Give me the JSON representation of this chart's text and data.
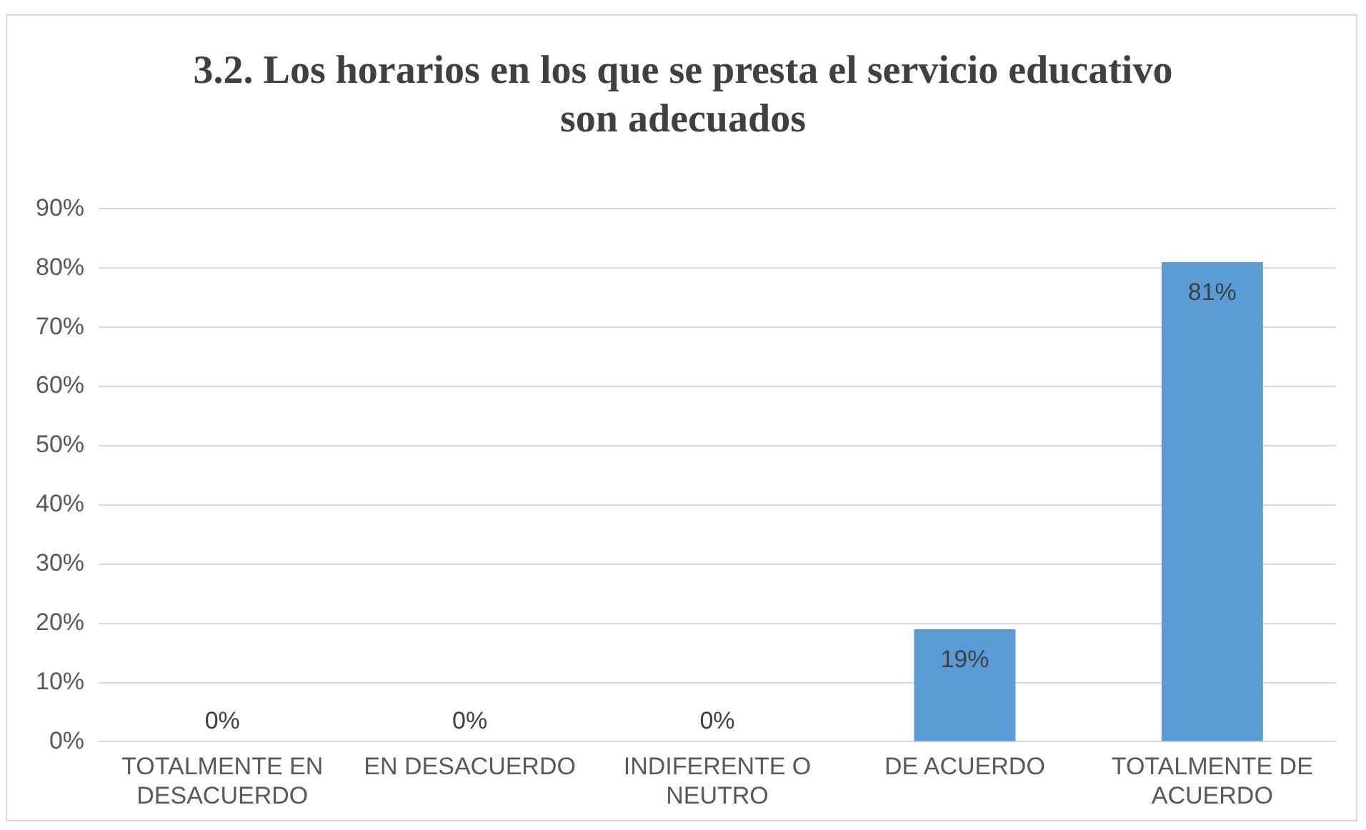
{
  "chart_data": {
    "type": "bar",
    "title": "3.2. Los horarios en los que se presta el servicio educativo son adecuados",
    "categories": [
      "TOTALMENTE EN DESACUERDO",
      "EN DESACUERDO",
      "INDIFERENTE O NEUTRO",
      "DE ACUERDO",
      "TOTALMENTE DE ACUERDO"
    ],
    "values": [
      0,
      0,
      0,
      19,
      81
    ],
    "color": "#5b9bd5",
    "value_labels": [
      "0%",
      "0%",
      "0%",
      "19%",
      "81%"
    ],
    "ylim": [
      0,
      90
    ],
    "yticks": [
      {
        "value": 0,
        "label": "0%"
      },
      {
        "value": 10,
        "label": "10%"
      },
      {
        "value": 20,
        "label": "20%"
      },
      {
        "value": 30,
        "label": "30%"
      },
      {
        "value": 40,
        "label": "40%"
      },
      {
        "value": 50,
        "label": "50%"
      },
      {
        "value": 60,
        "label": "60%"
      },
      {
        "value": 70,
        "label": "70%"
      },
      {
        "value": 80,
        "label": "80%"
      },
      {
        "value": 90,
        "label": "90%"
      }
    ],
    "grid": "y",
    "legend": false
  }
}
